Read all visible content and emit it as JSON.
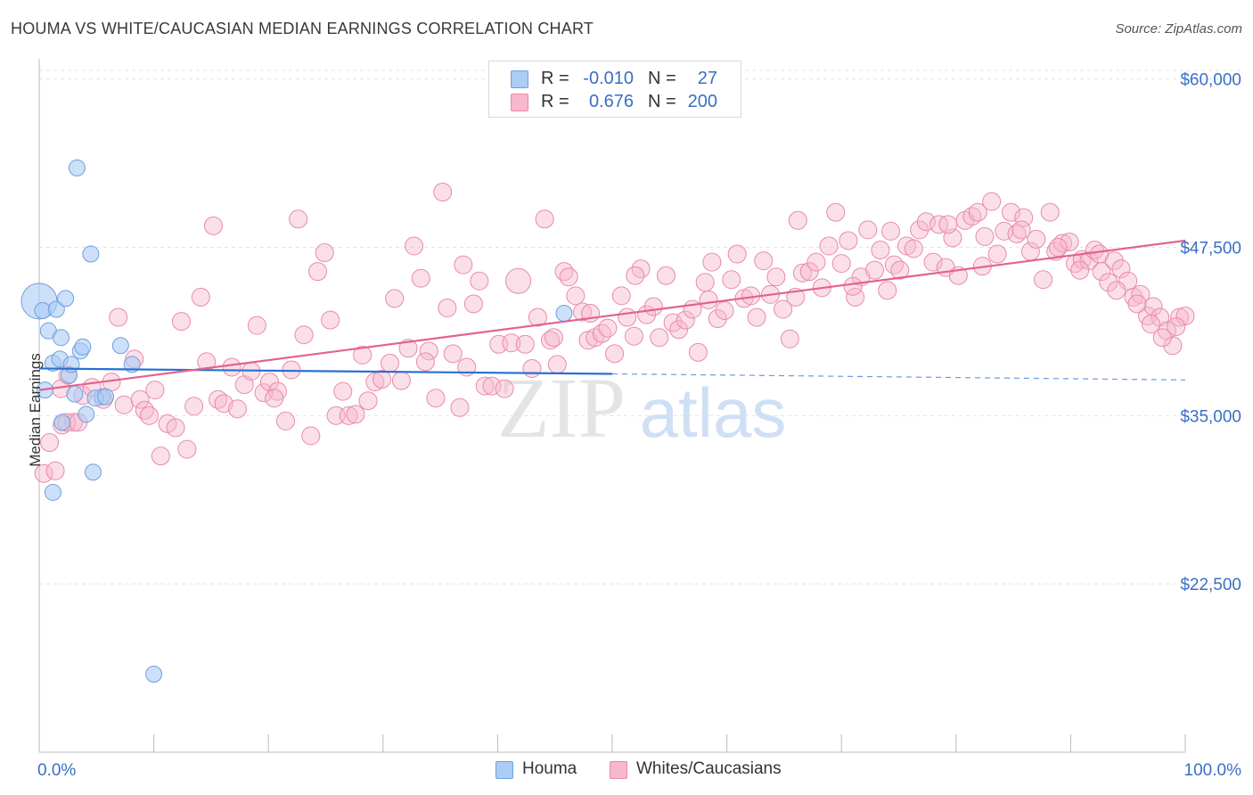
{
  "header": {
    "title": "HOUMA VS WHITE/CAUCASIAN MEDIAN EARNINGS CORRELATION CHART",
    "source": "Source: ZipAtlas.com"
  },
  "watermark": {
    "zip": "ZIP",
    "atlas": "atlas"
  },
  "legend": {
    "rows": [
      {
        "r_label": "R =",
        "r_value": "-0.010",
        "n_label": "N =",
        "n_value": "27",
        "color": "#aaccf5"
      },
      {
        "r_label": "R =",
        "r_value": "0.676",
        "n_label": "N =",
        "n_value": "200",
        "color": "#f7b8cc"
      }
    ]
  },
  "bottom_legend": [
    {
      "label": "Houma",
      "color": "#aaccf5"
    },
    {
      "label": "Whites/Caucasians",
      "color": "#f7b8cc"
    }
  ],
  "chart_data": {
    "type": "scatter",
    "title": "HOUMA VS WHITE/CAUCASIAN MEDIAN EARNINGS CORRELATION CHART",
    "xlabel": "",
    "ylabel": "Median Earnings",
    "xlim": [
      0,
      100
    ],
    "ylim": [
      10000,
      61500
    ],
    "x_tick_labels": [
      "0.0%",
      "100.0%"
    ],
    "y_ticks": [
      22500,
      35000,
      47500,
      60000
    ],
    "y_tick_labels": [
      "$22,500",
      "$35,000",
      "$47,500",
      "$60,000"
    ],
    "grid": true,
    "legend_position": "top-center",
    "colors": {
      "houma_fill": "#aaccf5",
      "houma_stroke": "#6f9fdc",
      "houma_line": "#2a6fd1",
      "white_fill": "#f7b8cc",
      "white_stroke": "#e88aa8",
      "white_line": "#e2628e",
      "tick_label": "#3a6fc4",
      "grid": "#e3e3e3"
    },
    "series": [
      {
        "name": "Houma",
        "trend": {
          "x1": 0,
          "y1": 38500,
          "x2": 50,
          "y2": 38100,
          "dashed_to_x": 100,
          "dashed_to_y": 37650
        },
        "points": [
          [
            0,
            43500,
            20
          ],
          [
            0.3,
            42800,
            9
          ],
          [
            0.5,
            36900,
            9
          ],
          [
            1.2,
            38900,
            9
          ],
          [
            0.8,
            41300,
            9
          ],
          [
            1.5,
            42900,
            9
          ],
          [
            2.3,
            43700,
            9
          ],
          [
            1.9,
            40800,
            9
          ],
          [
            3.3,
            53400,
            9
          ],
          [
            4.5,
            47000,
            9
          ],
          [
            3.6,
            39800,
            9
          ],
          [
            3.8,
            40100,
            9
          ],
          [
            2.6,
            38000,
            9
          ],
          [
            1.8,
            39200,
            9
          ],
          [
            2.8,
            38800,
            9
          ],
          [
            3.1,
            36600,
            9
          ],
          [
            5.5,
            36400,
            9
          ],
          [
            4.9,
            36300,
            9
          ],
          [
            5.8,
            36400,
            9
          ],
          [
            4.1,
            35100,
            9
          ],
          [
            2.0,
            34500,
            9
          ],
          [
            7.1,
            40200,
            9
          ],
          [
            8.1,
            38800,
            9
          ],
          [
            4.7,
            30800,
            9
          ],
          [
            1.2,
            29300,
            9
          ],
          [
            10.0,
            15800,
            9
          ],
          [
            45.8,
            42600,
            9
          ]
        ]
      },
      {
        "name": "Whites/Caucasians",
        "trend": {
          "x1": 0,
          "y1": 36900,
          "x2": 100,
          "y2": 48000
        },
        "points": [
          [
            0.4,
            30700,
            10
          ],
          [
            1.4,
            30900,
            10
          ],
          [
            0.9,
            33000,
            10
          ],
          [
            2.0,
            34300,
            10
          ],
          [
            3.0,
            34500,
            10
          ],
          [
            2.4,
            34500,
            10
          ],
          [
            3.4,
            34500,
            10
          ],
          [
            1.9,
            37000,
            10
          ],
          [
            2.5,
            38000,
            10
          ],
          [
            3.8,
            36500,
            10
          ],
          [
            4.6,
            37100,
            10
          ],
          [
            5.6,
            36200,
            10
          ],
          [
            6.3,
            37500,
            10
          ],
          [
            6.9,
            42300,
            10
          ],
          [
            7.4,
            35800,
            10
          ],
          [
            8.3,
            39200,
            10
          ],
          [
            8.8,
            36200,
            10
          ],
          [
            9.2,
            35400,
            10
          ],
          [
            9.6,
            35000,
            10
          ],
          [
            10.1,
            36900,
            10
          ],
          [
            10.6,
            32000,
            10
          ],
          [
            11.2,
            34400,
            10
          ],
          [
            11.9,
            34100,
            10
          ],
          [
            12.4,
            42000,
            10
          ],
          [
            12.9,
            32500,
            10
          ],
          [
            13.5,
            35700,
            10
          ],
          [
            14.1,
            43800,
            10
          ],
          [
            14.6,
            39000,
            10
          ],
          [
            15.2,
            49100,
            10
          ],
          [
            15.6,
            36200,
            10
          ],
          [
            16.1,
            35900,
            10
          ],
          [
            16.8,
            38600,
            10
          ],
          [
            17.3,
            35500,
            10
          ],
          [
            17.9,
            37300,
            10
          ],
          [
            18.5,
            38300,
            10
          ],
          [
            19.0,
            41700,
            10
          ],
          [
            19.6,
            36700,
            10
          ],
          [
            20.1,
            37500,
            10
          ],
          [
            20.8,
            36800,
            10
          ],
          [
            21.5,
            34600,
            10
          ],
          [
            22.0,
            38400,
            10
          ],
          [
            22.6,
            49600,
            10
          ],
          [
            23.1,
            41000,
            10
          ],
          [
            23.7,
            33500,
            10
          ],
          [
            24.3,
            45700,
            10
          ],
          [
            24.9,
            47100,
            10
          ],
          [
            25.4,
            42100,
            10
          ],
          [
            25.9,
            35000,
            10
          ],
          [
            26.5,
            36800,
            10
          ],
          [
            27.0,
            35000,
            10
          ],
          [
            27.6,
            35100,
            10
          ],
          [
            28.2,
            39500,
            10
          ],
          [
            28.7,
            36100,
            10
          ],
          [
            29.3,
            37500,
            10
          ],
          [
            29.9,
            37700,
            10
          ],
          [
            30.6,
            38900,
            10
          ],
          [
            31.0,
            43700,
            10
          ],
          [
            31.6,
            37600,
            10
          ],
          [
            32.2,
            40000,
            10
          ],
          [
            32.7,
            47600,
            10
          ],
          [
            33.3,
            45200,
            10
          ],
          [
            34.0,
            39800,
            10
          ],
          [
            34.6,
            36300,
            10
          ],
          [
            35.2,
            51600,
            10
          ],
          [
            35.6,
            43000,
            10
          ],
          [
            36.1,
            39600,
            10
          ],
          [
            36.7,
            35600,
            10
          ],
          [
            37.3,
            38600,
            10
          ],
          [
            37.9,
            43300,
            10
          ],
          [
            38.4,
            45000,
            10
          ],
          [
            38.9,
            37200,
            10
          ],
          [
            39.5,
            37200,
            10
          ],
          [
            40.1,
            40300,
            10
          ],
          [
            40.6,
            37000,
            10
          ],
          [
            37.0,
            46200,
            10
          ],
          [
            41.2,
            40400,
            10
          ],
          [
            41.8,
            45000,
            14
          ],
          [
            42.4,
            40300,
            10
          ],
          [
            43.0,
            38500,
            10
          ],
          [
            43.5,
            42300,
            10
          ],
          [
            44.1,
            49600,
            10
          ],
          [
            44.6,
            40600,
            10
          ],
          [
            45.2,
            38800,
            10
          ],
          [
            45.8,
            45700,
            10
          ],
          [
            46.2,
            45300,
            10
          ],
          [
            46.8,
            43900,
            10
          ],
          [
            47.4,
            42700,
            10
          ],
          [
            47.9,
            40600,
            10
          ],
          [
            48.5,
            40800,
            10
          ],
          [
            49.1,
            41100,
            10
          ],
          [
            49.6,
            41500,
            10
          ],
          [
            50.2,
            39600,
            10
          ],
          [
            50.8,
            43900,
            10
          ],
          [
            51.3,
            42300,
            10
          ],
          [
            51.9,
            40900,
            10
          ],
          [
            52.5,
            45900,
            10
          ],
          [
            53.0,
            42500,
            10
          ],
          [
            53.6,
            43100,
            10
          ],
          [
            54.1,
            40800,
            10
          ],
          [
            54.7,
            45400,
            10
          ],
          [
            55.3,
            41900,
            10
          ],
          [
            55.8,
            41400,
            10
          ],
          [
            56.4,
            42100,
            10
          ],
          [
            57.0,
            42900,
            10
          ],
          [
            57.5,
            39700,
            10
          ],
          [
            58.1,
            44900,
            10
          ],
          [
            58.7,
            46400,
            10
          ],
          [
            59.2,
            42200,
            10
          ],
          [
            59.8,
            42800,
            10
          ],
          [
            60.4,
            45100,
            10
          ],
          [
            60.9,
            47000,
            10
          ],
          [
            61.5,
            43700,
            10
          ],
          [
            62.1,
            43900,
            10
          ],
          [
            62.6,
            42300,
            10
          ],
          [
            63.2,
            46500,
            10
          ],
          [
            63.8,
            44000,
            10
          ],
          [
            64.3,
            45300,
            10
          ],
          [
            64.9,
            42900,
            10
          ],
          [
            65.5,
            40700,
            10
          ],
          [
            66.0,
            43800,
            10
          ],
          [
            66.6,
            45600,
            10
          ],
          [
            67.2,
            45700,
            10
          ],
          [
            67.8,
            46400,
            10
          ],
          [
            68.3,
            44500,
            10
          ],
          [
            68.9,
            47600,
            10
          ],
          [
            69.5,
            50100,
            10
          ],
          [
            70.0,
            46300,
            10
          ],
          [
            70.6,
            48000,
            10
          ],
          [
            71.2,
            43800,
            10
          ],
          [
            71.7,
            45300,
            10
          ],
          [
            72.3,
            48800,
            10
          ],
          [
            72.9,
            45800,
            10
          ],
          [
            73.4,
            47300,
            10
          ],
          [
            74.0,
            44300,
            10
          ],
          [
            74.6,
            46200,
            10
          ],
          [
            75.1,
            45800,
            10
          ],
          [
            75.7,
            47600,
            10
          ],
          [
            76.3,
            47400,
            10
          ],
          [
            76.8,
            48800,
            10
          ],
          [
            77.4,
            49400,
            10
          ],
          [
            78.0,
            46400,
            10
          ],
          [
            78.5,
            49200,
            10
          ],
          [
            79.1,
            46000,
            10
          ],
          [
            79.7,
            48200,
            10
          ],
          [
            80.2,
            45400,
            10
          ],
          [
            80.8,
            49500,
            10
          ],
          [
            81.4,
            49800,
            10
          ],
          [
            81.9,
            50100,
            10
          ],
          [
            82.5,
            48300,
            10
          ],
          [
            83.1,
            50900,
            10
          ],
          [
            83.6,
            47000,
            10
          ],
          [
            84.2,
            48700,
            10
          ],
          [
            84.8,
            50100,
            10
          ],
          [
            85.3,
            48500,
            10
          ],
          [
            85.9,
            49700,
            10
          ],
          [
            86.5,
            47200,
            10
          ],
          [
            87.0,
            48100,
            10
          ],
          [
            87.6,
            45100,
            10
          ],
          [
            88.2,
            50100,
            10
          ],
          [
            88.7,
            47200,
            10
          ],
          [
            89.3,
            47800,
            10
          ],
          [
            89.9,
            47900,
            10
          ],
          [
            90.4,
            46300,
            10
          ],
          [
            91.0,
            46600,
            10
          ],
          [
            91.6,
            46500,
            10
          ],
          [
            92.1,
            47300,
            10
          ],
          [
            92.7,
            45700,
            10
          ],
          [
            93.3,
            44900,
            10
          ],
          [
            93.8,
            46500,
            10
          ],
          [
            94.4,
            45900,
            10
          ],
          [
            95.0,
            45000,
            10
          ],
          [
            95.5,
            43800,
            10
          ],
          [
            96.1,
            44000,
            10
          ],
          [
            96.7,
            42400,
            10
          ],
          [
            97.2,
            43100,
            10
          ],
          [
            97.8,
            42300,
            10
          ],
          [
            98.4,
            41300,
            10
          ],
          [
            98.9,
            40200,
            10
          ],
          [
            99.5,
            42300,
            10
          ],
          [
            100.0,
            42400,
            10
          ],
          [
            66.2,
            49500,
            10
          ],
          [
            71.0,
            44600,
            10
          ],
          [
            74.3,
            48700,
            10
          ],
          [
            79.3,
            49200,
            10
          ],
          [
            82.3,
            46100,
            10
          ],
          [
            85.7,
            48800,
            10
          ],
          [
            88.9,
            47500,
            10
          ],
          [
            90.8,
            45800,
            10
          ],
          [
            92.5,
            47000,
            10
          ],
          [
            94.0,
            44300,
            10
          ],
          [
            95.8,
            43300,
            10
          ],
          [
            97.0,
            41800,
            10
          ],
          [
            98.0,
            40800,
            10
          ],
          [
            99.2,
            41600,
            10
          ],
          [
            58.4,
            43600,
            10
          ],
          [
            52.0,
            45400,
            10
          ],
          [
            48.1,
            42600,
            10
          ],
          [
            44.9,
            40800,
            10
          ],
          [
            33.7,
            39000,
            10
          ],
          [
            20.5,
            36300,
            10
          ]
        ]
      }
    ]
  }
}
